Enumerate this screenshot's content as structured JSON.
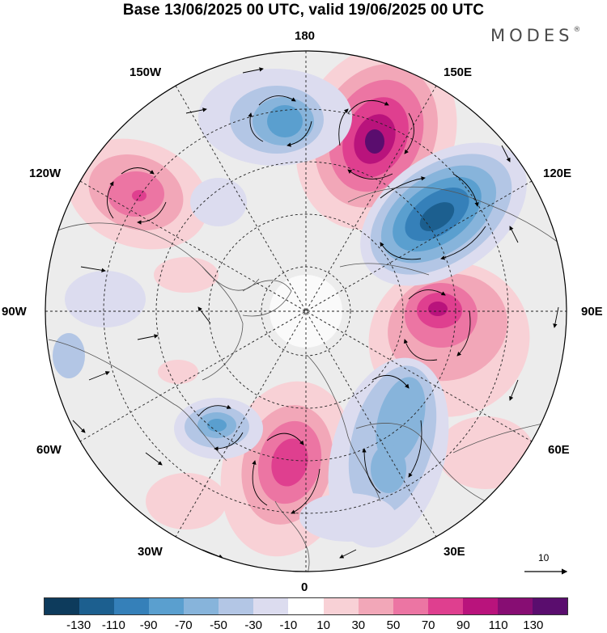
{
  "title": "Base 13/06/2025 00 UTC, valid 19/06/2025 00 UTC",
  "brand": "MODES",
  "brand_mark": "®",
  "longitude_labels": {
    "lon_180": "180",
    "lon_150e": "150E",
    "lon_120e": "120E",
    "lon_90e": "90E",
    "lon_60e": "60E",
    "lon_30e": "30E",
    "lon_0": "0",
    "lon_30w": "30W",
    "lon_60w": "60W",
    "lon_90w": "90W",
    "lon_120w": "120W",
    "lon_150w": "150W"
  },
  "reference_vector": "10",
  "colorbar": {
    "colors": [
      "#0d3b5c",
      "#1c5f8f",
      "#3580b9",
      "#5a9fcf",
      "#87b4db",
      "#b3c6e5",
      "#dcdcef",
      "#ffffff",
      "#f8d1d6",
      "#f2a7b8",
      "#ec75a3",
      "#df3f8f",
      "#b9137c",
      "#870d73",
      "#5a0d6e"
    ],
    "ticks": [
      "-130",
      "-110",
      "-90",
      "-70",
      "-50",
      "-30",
      "-10",
      "10",
      "30",
      "50",
      "70",
      "90",
      "110",
      "130"
    ]
  }
}
